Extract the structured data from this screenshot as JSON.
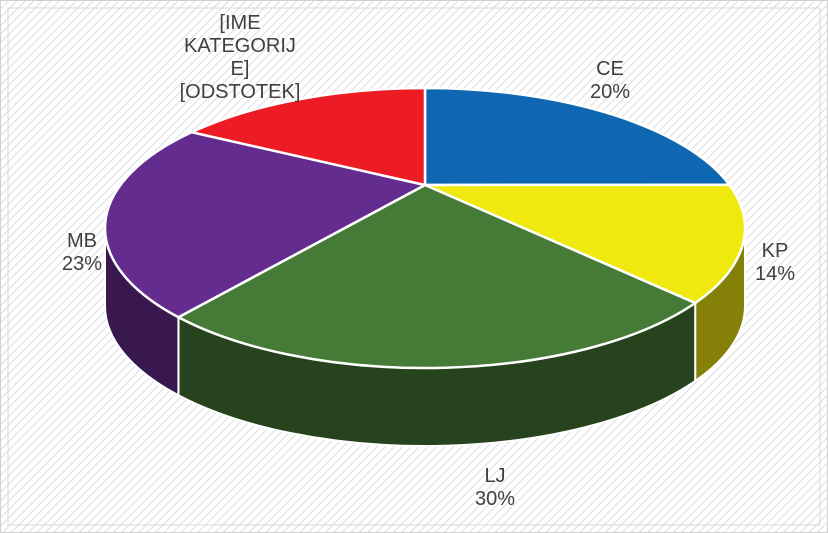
{
  "chart_data": {
    "type": "pie",
    "categories": [
      "CE",
      "KP",
      "LJ",
      "MB",
      "[IME KATEGORIJE]"
    ],
    "values": [
      20,
      14,
      30,
      23,
      13
    ],
    "value_labels": [
      "20%",
      "14%",
      "30%",
      "23%",
      "[ODSTOTEK]"
    ],
    "colors": [
      "#0f67b1",
      "#f0e90f",
      "#467a37",
      "#652c8f",
      "#ed1c24"
    ],
    "three_d": true
  }
}
